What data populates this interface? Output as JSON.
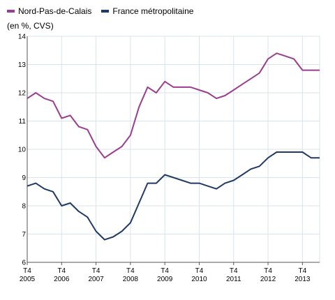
{
  "legend": [
    {
      "label": "Nord-Pas-de-Calais",
      "color": "#9b3d8f"
    },
    {
      "label": "France métropolitaine",
      "color": "#1f3a66"
    }
  ],
  "unit_label": "(en %, CVS)",
  "chart_data": {
    "type": "line",
    "ylabel": "(en %, CVS)",
    "ylim": [
      6,
      14
    ],
    "yticks": [
      "6",
      "7",
      "8",
      "9",
      "10",
      "11",
      "12",
      "13",
      "14"
    ],
    "xticks": [
      {
        "quarter": "T4",
        "year": "2005"
      },
      {
        "quarter": "T4",
        "year": "2006"
      },
      {
        "quarter": "T4",
        "year": "2007"
      },
      {
        "quarter": "T4",
        "year": "2008"
      },
      {
        "quarter": "T4",
        "year": "2009"
      },
      {
        "quarter": "T4",
        "year": "2010"
      },
      {
        "quarter": "T4",
        "year": "2011"
      },
      {
        "quarter": "T4",
        "year": "2012"
      },
      {
        "quarter": "T4",
        "year": "2013"
      }
    ],
    "x": [
      "2005-T4",
      "2006-T1",
      "2006-T2",
      "2006-T3",
      "2006-T4",
      "2007-T1",
      "2007-T2",
      "2007-T3",
      "2007-T4",
      "2008-T1",
      "2008-T2",
      "2008-T3",
      "2008-T4",
      "2009-T1",
      "2009-T2",
      "2009-T3",
      "2009-T4",
      "2010-T1",
      "2010-T2",
      "2010-T3",
      "2010-T4",
      "2011-T1",
      "2011-T2",
      "2011-T3",
      "2011-T4",
      "2012-T1",
      "2012-T2",
      "2012-T3",
      "2012-T4",
      "2013-T1",
      "2013-T2",
      "2013-T3",
      "2013-T4",
      "2014-T1",
      "2014-T2"
    ],
    "grid": true,
    "series": [
      {
        "name": "Nord-Pas-de-Calais",
        "color": "#9b3d8f",
        "values": [
          11.8,
          12.0,
          11.8,
          11.7,
          11.1,
          11.2,
          10.8,
          10.7,
          10.1,
          9.7,
          9.9,
          10.1,
          10.5,
          11.5,
          12.2,
          12.0,
          12.4,
          12.2,
          12.2,
          12.2,
          12.1,
          12.0,
          11.8,
          11.9,
          12.1,
          12.3,
          12.5,
          12.7,
          13.2,
          13.4,
          13.3,
          13.2,
          12.8,
          12.8,
          12.8
        ]
      },
      {
        "name": "France métropolitaine",
        "color": "#1f3a66",
        "values": [
          8.7,
          8.8,
          8.6,
          8.5,
          8.0,
          8.1,
          7.8,
          7.6,
          7.1,
          6.8,
          6.9,
          7.1,
          7.4,
          8.1,
          8.8,
          8.8,
          9.1,
          9.0,
          8.9,
          8.8,
          8.8,
          8.7,
          8.6,
          8.8,
          8.9,
          9.1,
          9.3,
          9.4,
          9.7,
          9.9,
          9.9,
          9.9,
          9.9,
          9.7,
          9.7
        ]
      }
    ]
  }
}
